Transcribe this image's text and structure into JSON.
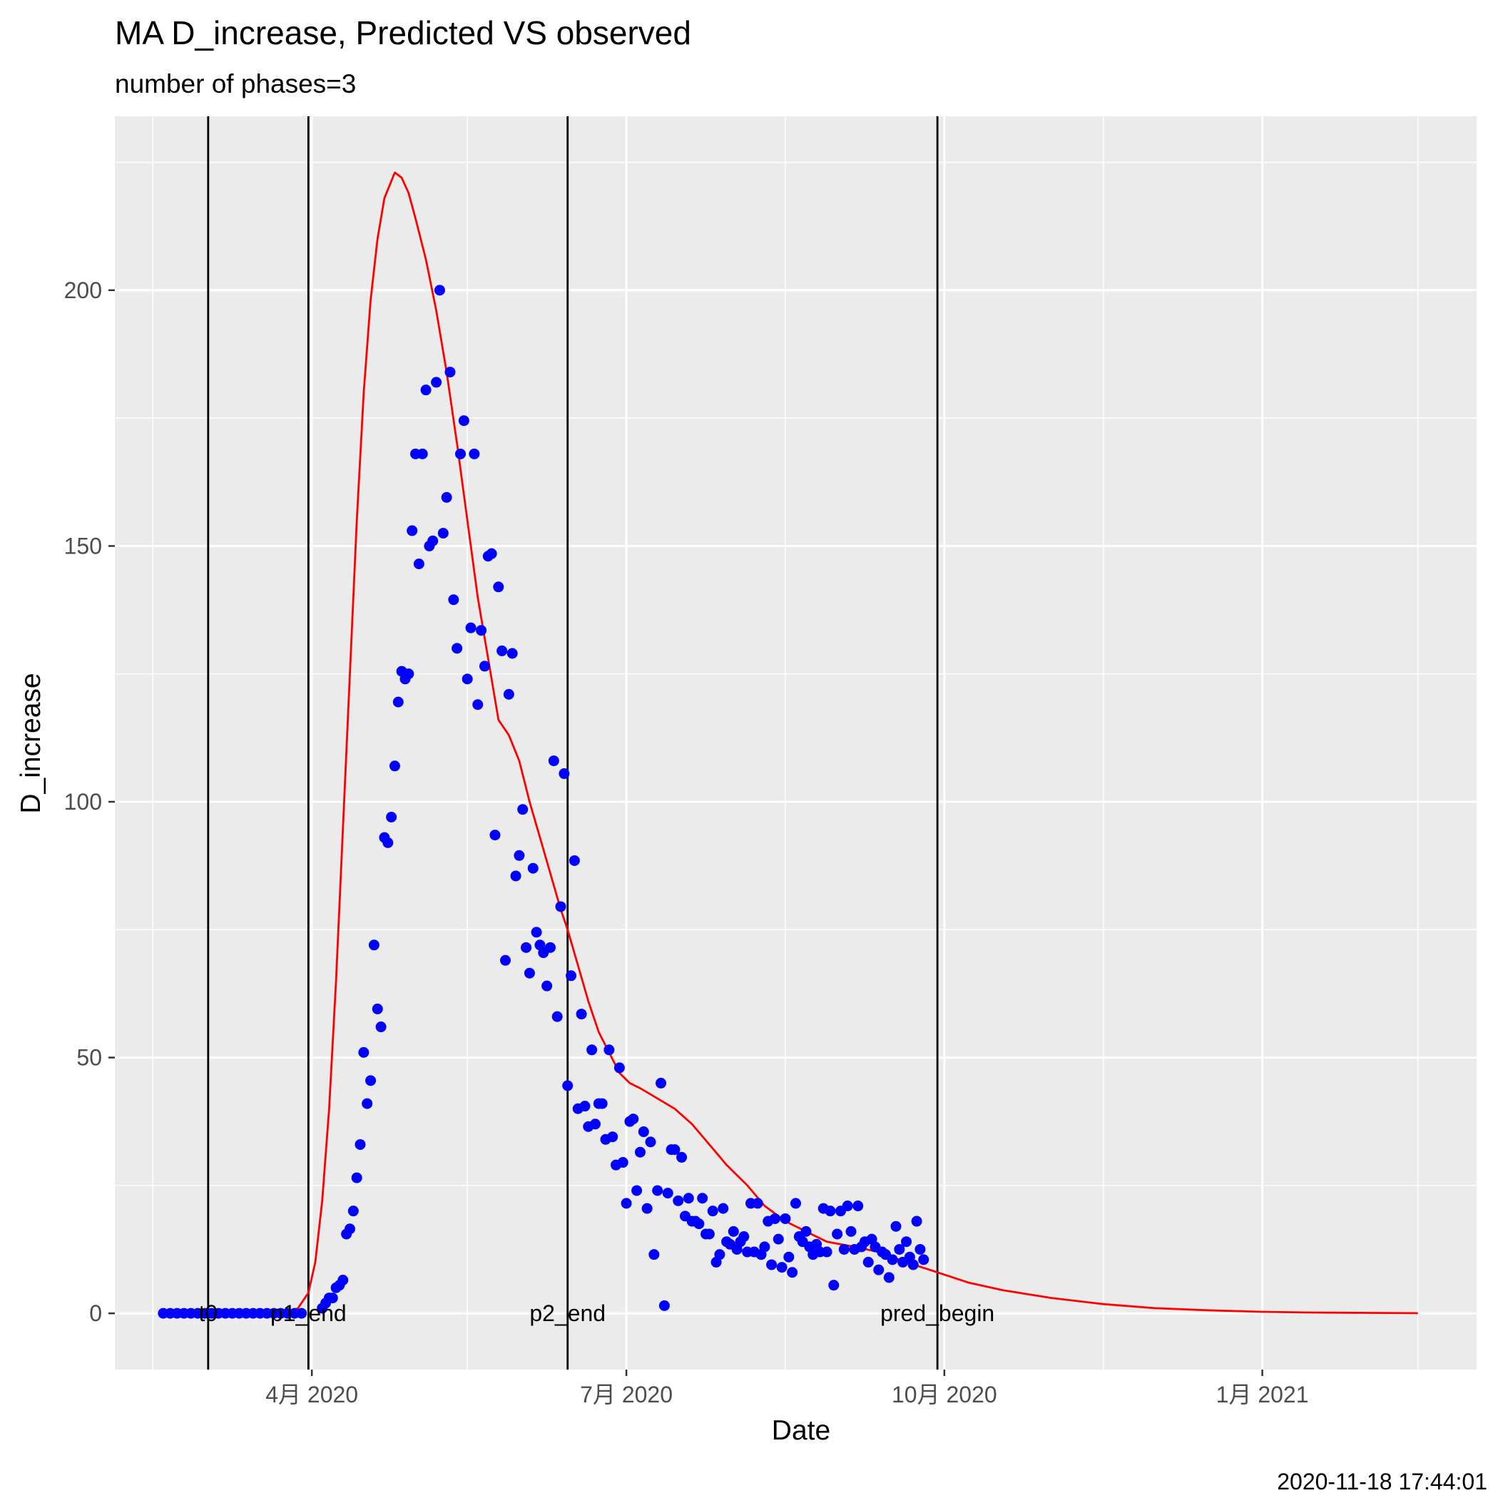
{
  "chart_data": {
    "type": "line",
    "title": "MA D_increase, Predicted VS observed",
    "subtitle": "number of phases=3",
    "xlabel": "Date",
    "ylabel": "D_increase",
    "caption": "2020-11-18 17:44:01",
    "xlim": [
      "2020-02-04",
      "2021-03-04"
    ],
    "ylim": [
      -11,
      234
    ],
    "x_ticks": [
      {
        "date": "2020-04-01",
        "label": "4月 2020"
      },
      {
        "date": "2020-07-01",
        "label": "7月 2020"
      },
      {
        "date": "2020-10-01",
        "label": "10月 2020"
      },
      {
        "date": "2021-01-01",
        "label": "1月 2021"
      }
    ],
    "x_minor": [
      "2020-02-15",
      "2020-05-16",
      "2020-08-16",
      "2020-11-16",
      "2021-02-15"
    ],
    "y_ticks": [
      0,
      50,
      100,
      150,
      200
    ],
    "y_minor": [
      25,
      75,
      125,
      175,
      225
    ],
    "grid": true,
    "vertical_lines": [
      {
        "date": "2020-03-02",
        "label": "t0"
      },
      {
        "date": "2020-03-31",
        "label": "p1_end"
      },
      {
        "date": "2020-06-14",
        "label": "p2_end"
      },
      {
        "date": "2020-09-29",
        "label": "pred_begin"
      }
    ],
    "series": [
      {
        "kind": "line",
        "color": "#ff0000",
        "points": [
          [
            "2020-03-25",
            0
          ],
          [
            "2020-03-28",
            1
          ],
          [
            "2020-03-31",
            4
          ],
          [
            "2020-04-02",
            10
          ],
          [
            "2020-04-04",
            22
          ],
          [
            "2020-04-06",
            40
          ],
          [
            "2020-04-08",
            65
          ],
          [
            "2020-04-10",
            95
          ],
          [
            "2020-04-12",
            125
          ],
          [
            "2020-04-14",
            155
          ],
          [
            "2020-04-16",
            180
          ],
          [
            "2020-04-18",
            198
          ],
          [
            "2020-04-20",
            210
          ],
          [
            "2020-04-22",
            218
          ],
          [
            "2020-04-25",
            223
          ],
          [
            "2020-04-27",
            222
          ],
          [
            "2020-04-29",
            219
          ],
          [
            "2020-05-01",
            214
          ],
          [
            "2020-05-04",
            206
          ],
          [
            "2020-05-07",
            196
          ],
          [
            "2020-05-10",
            184
          ],
          [
            "2020-05-13",
            170
          ],
          [
            "2020-05-16",
            155
          ],
          [
            "2020-05-19",
            140
          ],
          [
            "2020-05-22",
            128
          ],
          [
            "2020-05-25",
            116
          ],
          [
            "2020-05-28",
            113
          ],
          [
            "2020-05-31",
            108
          ],
          [
            "2020-06-03",
            100
          ],
          [
            "2020-06-06",
            93
          ],
          [
            "2020-06-09",
            86
          ],
          [
            "2020-06-12",
            79
          ],
          [
            "2020-06-14",
            75
          ],
          [
            "2020-06-17",
            68
          ],
          [
            "2020-06-20",
            61
          ],
          [
            "2020-06-23",
            55
          ],
          [
            "2020-06-26",
            51
          ],
          [
            "2020-06-29",
            47
          ],
          [
            "2020-07-02",
            45
          ],
          [
            "2020-07-05",
            44
          ],
          [
            "2020-07-10",
            42
          ],
          [
            "2020-07-15",
            40
          ],
          [
            "2020-07-20",
            37
          ],
          [
            "2020-07-25",
            33
          ],
          [
            "2020-07-30",
            29
          ],
          [
            "2020-08-05",
            25
          ],
          [
            "2020-08-10",
            21
          ],
          [
            "2020-08-16",
            18
          ],
          [
            "2020-08-22",
            16
          ],
          [
            "2020-08-28",
            14
          ],
          [
            "2020-09-05",
            13
          ],
          [
            "2020-09-12",
            12
          ],
          [
            "2020-09-20",
            10
          ],
          [
            "2020-09-29",
            8
          ],
          [
            "2020-10-08",
            6
          ],
          [
            "2020-10-18",
            4.5
          ],
          [
            "2020-11-01",
            3
          ],
          [
            "2020-11-16",
            1.8
          ],
          [
            "2020-12-01",
            1
          ],
          [
            "2020-12-16",
            0.6
          ],
          [
            "2021-01-01",
            0.3
          ],
          [
            "2021-01-15",
            0.15
          ],
          [
            "2021-02-01",
            0.08
          ],
          [
            "2021-02-15",
            0.03
          ]
        ]
      },
      {
        "kind": "scatter",
        "color": "#0000ff",
        "points": [
          [
            "2020-02-18",
            0
          ],
          [
            "2020-02-20",
            0
          ],
          [
            "2020-02-22",
            0
          ],
          [
            "2020-02-24",
            0
          ],
          [
            "2020-02-26",
            0
          ],
          [
            "2020-02-28",
            0
          ],
          [
            "2020-03-01",
            0
          ],
          [
            "2020-03-03",
            0
          ],
          [
            "2020-03-05",
            0
          ],
          [
            "2020-03-07",
            0
          ],
          [
            "2020-03-09",
            0
          ],
          [
            "2020-03-11",
            0
          ],
          [
            "2020-03-13",
            0
          ],
          [
            "2020-03-15",
            0
          ],
          [
            "2020-03-17",
            0
          ],
          [
            "2020-03-19",
            0
          ],
          [
            "2020-03-21",
            0
          ],
          [
            "2020-03-23",
            0
          ],
          [
            "2020-03-25",
            0
          ],
          [
            "2020-03-27",
            0
          ],
          [
            "2020-03-29",
            0
          ],
          [
            "2020-04-04",
            1
          ],
          [
            "2020-04-05",
            2
          ],
          [
            "2020-04-06",
            3
          ],
          [
            "2020-04-07",
            3
          ],
          [
            "2020-04-08",
            5
          ],
          [
            "2020-04-09",
            5.5
          ],
          [
            "2020-04-10",
            6.5
          ],
          [
            "2020-04-11",
            15.5
          ],
          [
            "2020-04-12",
            16.5
          ],
          [
            "2020-04-13",
            20
          ],
          [
            "2020-04-14",
            26.5
          ],
          [
            "2020-04-15",
            33
          ],
          [
            "2020-04-16",
            51
          ],
          [
            "2020-04-17",
            41
          ],
          [
            "2020-04-18",
            45.5
          ],
          [
            "2020-04-19",
            72
          ],
          [
            "2020-04-20",
            59.5
          ],
          [
            "2020-04-21",
            56
          ],
          [
            "2020-04-22",
            93
          ],
          [
            "2020-04-23",
            92
          ],
          [
            "2020-04-24",
            97
          ],
          [
            "2020-04-25",
            107
          ],
          [
            "2020-04-26",
            119.5
          ],
          [
            "2020-04-27",
            125.5
          ],
          [
            "2020-04-28",
            124
          ],
          [
            "2020-04-29",
            125
          ],
          [
            "2020-04-30",
            153
          ],
          [
            "2020-05-01",
            168
          ],
          [
            "2020-05-02",
            146.5
          ],
          [
            "2020-05-03",
            168
          ],
          [
            "2020-05-04",
            180.5
          ],
          [
            "2020-05-05",
            150
          ],
          [
            "2020-05-06",
            151
          ],
          [
            "2020-05-07",
            182
          ],
          [
            "2020-05-08",
            200
          ],
          [
            "2020-05-09",
            152.5
          ],
          [
            "2020-05-10",
            159.5
          ],
          [
            "2020-05-11",
            184
          ],
          [
            "2020-05-12",
            139.5
          ],
          [
            "2020-05-13",
            130
          ],
          [
            "2020-05-14",
            168
          ],
          [
            "2020-05-15",
            174.5
          ],
          [
            "2020-05-16",
            124
          ],
          [
            "2020-05-17",
            134
          ],
          [
            "2020-05-18",
            168
          ],
          [
            "2020-05-19",
            119
          ],
          [
            "2020-05-20",
            133.5
          ],
          [
            "2020-05-21",
            126.5
          ],
          [
            "2020-05-22",
            148
          ],
          [
            "2020-05-23",
            148.5
          ],
          [
            "2020-05-24",
            93.5
          ],
          [
            "2020-05-25",
            142
          ],
          [
            "2020-05-26",
            129.5
          ],
          [
            "2020-05-27",
            69
          ],
          [
            "2020-05-28",
            121
          ],
          [
            "2020-05-29",
            129
          ],
          [
            "2020-05-30",
            85.5
          ],
          [
            "2020-05-31",
            89.5
          ],
          [
            "2020-06-01",
            98.5
          ],
          [
            "2020-06-02",
            71.5
          ],
          [
            "2020-06-03",
            66.5
          ],
          [
            "2020-06-04",
            87
          ],
          [
            "2020-06-05",
            74.5
          ],
          [
            "2020-06-06",
            72
          ],
          [
            "2020-06-07",
            70.5
          ],
          [
            "2020-06-08",
            64
          ],
          [
            "2020-06-09",
            71.5
          ],
          [
            "2020-06-10",
            108
          ],
          [
            "2020-06-11",
            58
          ],
          [
            "2020-06-12",
            79.5
          ],
          [
            "2020-06-13",
            105.5
          ],
          [
            "2020-06-14",
            44.5
          ],
          [
            "2020-06-15",
            66
          ],
          [
            "2020-06-16",
            88.5
          ],
          [
            "2020-06-17",
            40
          ],
          [
            "2020-06-18",
            58.5
          ],
          [
            "2020-06-19",
            40.5
          ],
          [
            "2020-06-20",
            36.5
          ],
          [
            "2020-06-21",
            51.5
          ],
          [
            "2020-06-22",
            37
          ],
          [
            "2020-06-23",
            41
          ],
          [
            "2020-06-24",
            41
          ],
          [
            "2020-06-25",
            34
          ],
          [
            "2020-06-26",
            51.5
          ],
          [
            "2020-06-27",
            34.5
          ],
          [
            "2020-06-28",
            29
          ],
          [
            "2020-06-29",
            48
          ],
          [
            "2020-06-30",
            29.5
          ],
          [
            "2020-07-01",
            21.5
          ],
          [
            "2020-07-02",
            37.5
          ],
          [
            "2020-07-03",
            38
          ],
          [
            "2020-07-04",
            24
          ],
          [
            "2020-07-05",
            31.5
          ],
          [
            "2020-07-06",
            35.5
          ],
          [
            "2020-07-07",
            20.5
          ],
          [
            "2020-07-08",
            33.5
          ],
          [
            "2020-07-09",
            11.5
          ],
          [
            "2020-07-10",
            24
          ],
          [
            "2020-07-11",
            45
          ],
          [
            "2020-07-12",
            1.5
          ],
          [
            "2020-07-13",
            23.5
          ],
          [
            "2020-07-14",
            32
          ],
          [
            "2020-07-15",
            32
          ],
          [
            "2020-07-16",
            22
          ],
          [
            "2020-07-17",
            30.5
          ],
          [
            "2020-07-18",
            19
          ],
          [
            "2020-07-19",
            22.5
          ],
          [
            "2020-07-20",
            18
          ],
          [
            "2020-07-21",
            18
          ],
          [
            "2020-07-22",
            17.5
          ],
          [
            "2020-07-23",
            22.5
          ],
          [
            "2020-07-24",
            15.5
          ],
          [
            "2020-07-25",
            15.5
          ],
          [
            "2020-07-26",
            20
          ],
          [
            "2020-07-27",
            10
          ],
          [
            "2020-07-28",
            11.5
          ],
          [
            "2020-07-29",
            20.5
          ],
          [
            "2020-07-30",
            14
          ],
          [
            "2020-07-31",
            13.5
          ],
          [
            "2020-08-01",
            16
          ],
          [
            "2020-08-02",
            12.5
          ],
          [
            "2020-08-03",
            14
          ],
          [
            "2020-08-04",
            15
          ],
          [
            "2020-08-05",
            12
          ],
          [
            "2020-08-06",
            21.5
          ],
          [
            "2020-08-07",
            12
          ],
          [
            "2020-08-08",
            21.5
          ],
          [
            "2020-08-09",
            11.5
          ],
          [
            "2020-08-10",
            13
          ],
          [
            "2020-08-11",
            18
          ],
          [
            "2020-08-12",
            9.5
          ],
          [
            "2020-08-13",
            18.5
          ],
          [
            "2020-08-14",
            14.5
          ],
          [
            "2020-08-15",
            9
          ],
          [
            "2020-08-16",
            18.5
          ],
          [
            "2020-08-17",
            11
          ],
          [
            "2020-08-18",
            8
          ],
          [
            "2020-08-19",
            21.5
          ],
          [
            "2020-08-20",
            15
          ],
          [
            "2020-08-21",
            14
          ],
          [
            "2020-08-22",
            16
          ],
          [
            "2020-08-23",
            13
          ],
          [
            "2020-08-24",
            11.5
          ],
          [
            "2020-08-25",
            13.5
          ],
          [
            "2020-08-26",
            12
          ],
          [
            "2020-08-27",
            20.5
          ],
          [
            "2020-08-28",
            12
          ],
          [
            "2020-08-29",
            20
          ],
          [
            "2020-08-30",
            5.5
          ],
          [
            "2020-08-31",
            15.5
          ],
          [
            "2020-09-01",
            20
          ],
          [
            "2020-09-02",
            12.5
          ],
          [
            "2020-09-03",
            21
          ],
          [
            "2020-09-04",
            16
          ],
          [
            "2020-09-05",
            12.5
          ],
          [
            "2020-09-06",
            21
          ],
          [
            "2020-09-07",
            13
          ],
          [
            "2020-09-08",
            14
          ],
          [
            "2020-09-09",
            10
          ],
          [
            "2020-09-10",
            14.5
          ],
          [
            "2020-09-11",
            13
          ],
          [
            "2020-09-12",
            8.5
          ],
          [
            "2020-09-13",
            12
          ],
          [
            "2020-09-14",
            11.5
          ],
          [
            "2020-09-15",
            7
          ],
          [
            "2020-09-16",
            10.5
          ],
          [
            "2020-09-17",
            17
          ],
          [
            "2020-09-18",
            12.5
          ],
          [
            "2020-09-19",
            10
          ],
          [
            "2020-09-20",
            14
          ],
          [
            "2020-09-21",
            11
          ],
          [
            "2020-09-22",
            9.5
          ],
          [
            "2020-09-23",
            18
          ],
          [
            "2020-09-24",
            12.5
          ],
          [
            "2020-09-25",
            10.5
          ]
        ]
      }
    ]
  }
}
